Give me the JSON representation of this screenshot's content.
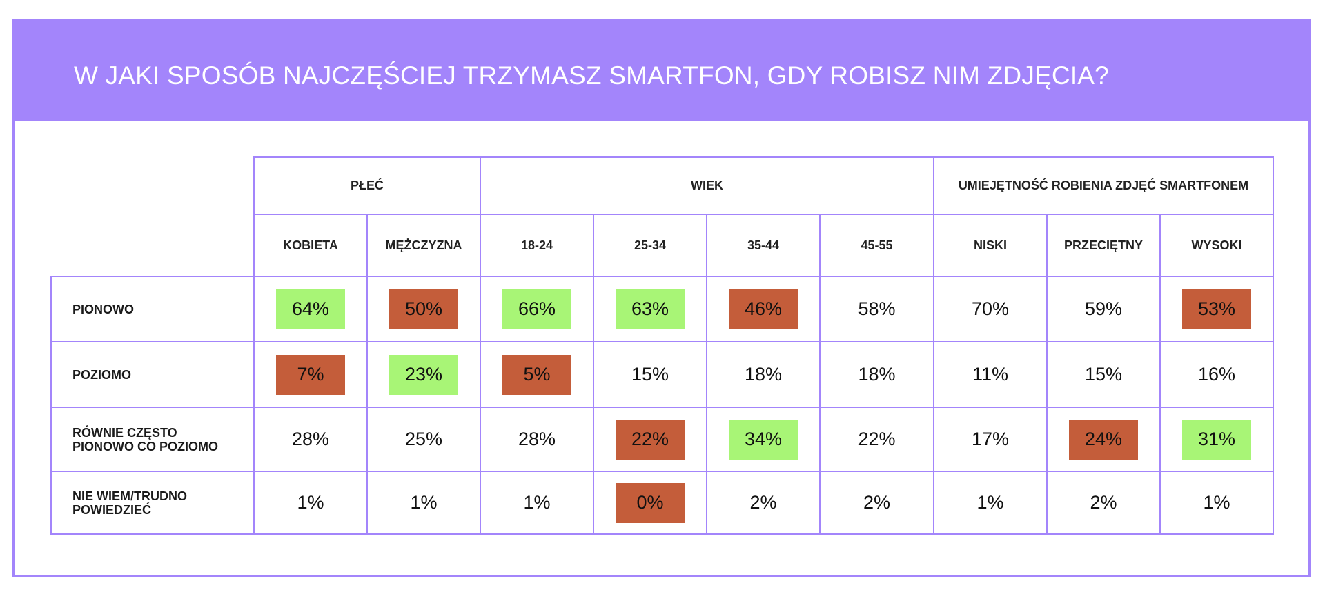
{
  "chart_data": {
    "type": "table",
    "title": "W JAKI SPOSÓB NAJCZĘŚCIEJ TRZYMASZ SMARTFON, GDY ROBISZ NIM ZDJĘCIA?",
    "groups": [
      {
        "label": "PŁEĆ",
        "columns": [
          "KOBIETA",
          "MĘŻCZYZNA"
        ]
      },
      {
        "label": "WIEK",
        "columns": [
          "18-24",
          "25-34",
          "35-44",
          "45-55"
        ]
      },
      {
        "label": "UMIEJĘTNOŚĆ ROBIENIA ZDJĘĆ SMARTFONEM",
        "columns": [
          "NISKI",
          "PRZECIĘTNY",
          "WYSOKI"
        ]
      }
    ],
    "columns": [
      "KOBIETA",
      "MĘŻCZYZNA",
      "18-24",
      "25-34",
      "35-44",
      "45-55",
      "NISKI",
      "PRZECIĘTNY",
      "WYSOKI"
    ],
    "rows": [
      {
        "label": [
          "PIONOWO"
        ],
        "values": [
          "64%",
          "50%",
          "66%",
          "63%",
          "46%",
          "58%",
          "70%",
          "59%",
          "53%"
        ],
        "highlight": [
          "high",
          "low",
          "high",
          "high",
          "low",
          "none",
          "none",
          "none",
          "low"
        ]
      },
      {
        "label": [
          "POZIOMO"
        ],
        "values": [
          "7%",
          "23%",
          "5%",
          "15%",
          "18%",
          "18%",
          "11%",
          "15%",
          "16%"
        ],
        "highlight": [
          "low",
          "high",
          "low",
          "none",
          "none",
          "none",
          "none",
          "none",
          "none"
        ]
      },
      {
        "label": [
          "RÓWNIE CZĘSTO",
          "PIONOWO CO POZIOMO"
        ],
        "values": [
          "28%",
          "25%",
          "28%",
          "22%",
          "34%",
          "22%",
          "17%",
          "24%",
          "31%"
        ],
        "highlight": [
          "none",
          "none",
          "none",
          "low",
          "high",
          "none",
          "none",
          "low",
          "high"
        ]
      },
      {
        "label": [
          "NIE WIEM/TRUDNO",
          "POWIEDZIEĆ"
        ],
        "values": [
          "1%",
          "1%",
          "1%",
          "0%",
          "2%",
          "2%",
          "1%",
          "2%",
          "1%"
        ],
        "highlight": [
          "none",
          "none",
          "none",
          "low",
          "none",
          "none",
          "none",
          "none",
          "none"
        ]
      }
    ],
    "colors": {
      "accent": "#a385fb",
      "high": "#a8f576",
      "low": "#c45d3a"
    }
  }
}
